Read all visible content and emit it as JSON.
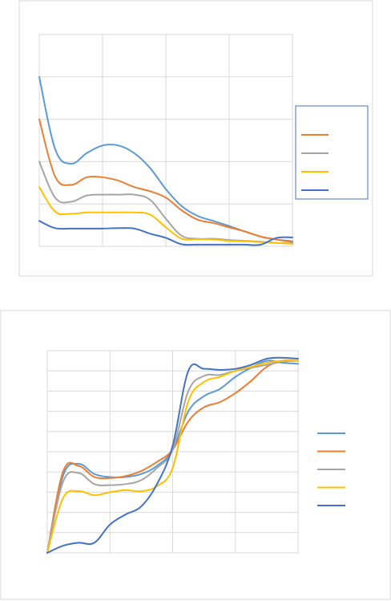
{
  "colors": {
    "blue": "#5b9bd5",
    "orange": "#ed7d31",
    "gray": "#a5a5a5",
    "yellow": "#ffc000",
    "darkblue": "#4472c4"
  },
  "chart_data": [
    {
      "type": "line",
      "title": "",
      "xlabel": "",
      "ylabel": "",
      "xlim": [
        0,
        4
      ],
      "ylim": [
        0,
        5
      ],
      "grid": true,
      "legend_position": "right",
      "series": [
        {
          "color": "#5b9bd5",
          "label": "",
          "x": [
            0,
            0.25,
            0.5,
            0.75,
            1.0,
            1.25,
            1.5,
            1.75,
            2.0,
            2.25,
            2.5,
            2.75,
            3.0,
            3.25,
            3.5,
            3.75,
            4.0
          ],
          "y": [
            4.0,
            2.3,
            1.95,
            2.2,
            2.38,
            2.38,
            2.2,
            1.85,
            1.35,
            0.95,
            0.72,
            0.6,
            0.48,
            0.35,
            0.23,
            0.16,
            0.12
          ]
        },
        {
          "color": "#ed7d31",
          "label": "",
          "x": [
            0,
            0.25,
            0.5,
            0.75,
            1.0,
            1.25,
            1.5,
            1.75,
            2.0,
            2.25,
            2.5,
            2.75,
            3.0,
            3.25,
            3.5,
            3.75,
            4.0
          ],
          "y": [
            3.0,
            1.65,
            1.45,
            1.63,
            1.63,
            1.55,
            1.4,
            1.3,
            1.15,
            0.85,
            0.63,
            0.55,
            0.45,
            0.35,
            0.23,
            0.16,
            0.1
          ]
        },
        {
          "color": "#a5a5a5",
          "label": "",
          "x": [
            0,
            0.25,
            0.5,
            0.75,
            1.0,
            1.25,
            1.5,
            1.75,
            2.0,
            2.25,
            2.5,
            2.75,
            3.0,
            3.25,
            3.5,
            3.75,
            4.0
          ],
          "y": [
            2.0,
            1.15,
            1.05,
            1.2,
            1.22,
            1.22,
            1.22,
            1.1,
            0.65,
            0.25,
            0.18,
            0.18,
            0.15,
            0.13,
            0.11,
            0.08,
            0.07
          ]
        },
        {
          "color": "#ffc000",
          "label": "",
          "x": [
            0,
            0.25,
            0.5,
            0.75,
            1.0,
            1.25,
            1.5,
            1.75,
            2.0,
            2.25,
            2.5,
            2.75,
            3.0,
            3.25,
            3.5,
            3.75,
            4.0
          ],
          "y": [
            1.4,
            0.82,
            0.77,
            0.8,
            0.8,
            0.8,
            0.8,
            0.75,
            0.45,
            0.18,
            0.17,
            0.16,
            0.13,
            0.12,
            0.1,
            0.08,
            0.06
          ]
        },
        {
          "color": "#4472c4",
          "label": "",
          "x": [
            0,
            0.25,
            0.5,
            0.75,
            1.0,
            1.25,
            1.5,
            1.75,
            2.0,
            2.25,
            2.5,
            2.75,
            3.0,
            3.25,
            3.5,
            3.75,
            4.0
          ],
          "y": [
            0.6,
            0.43,
            0.42,
            0.42,
            0.42,
            0.43,
            0.42,
            0.3,
            0.2,
            0.05,
            0.04,
            0.04,
            0.04,
            0.04,
            0.04,
            0.2,
            0.21
          ]
        }
      ]
    },
    {
      "type": "line",
      "title": "",
      "xlabel": "",
      "ylabel": "",
      "xlim": [
        0,
        4
      ],
      "ylim": [
        0,
        10
      ],
      "grid": true,
      "legend_position": "right",
      "series": [
        {
          "color": "#5b9bd5",
          "label": "",
          "x": [
            0,
            0.25,
            0.5,
            0.75,
            1.0,
            1.25,
            1.5,
            1.75,
            2.0,
            2.25,
            2.5,
            2.75,
            3.0,
            3.25,
            3.5,
            3.75,
            4.0
          ],
          "y": [
            0,
            3.8,
            4.4,
            3.9,
            3.75,
            3.75,
            3.9,
            4.3,
            5.1,
            7.0,
            7.75,
            8.1,
            8.7,
            9.15,
            9.5,
            9.4,
            9.35
          ]
        },
        {
          "color": "#ed7d31",
          "label": "",
          "x": [
            0,
            0.25,
            0.5,
            0.75,
            1.0,
            1.25,
            1.5,
            1.75,
            2.0,
            2.25,
            2.5,
            2.75,
            3.0,
            3.25,
            3.5,
            3.75,
            4.0
          ],
          "y": [
            0,
            4.0,
            4.3,
            3.75,
            3.7,
            3.8,
            4.05,
            4.5,
            5.1,
            6.5,
            7.2,
            7.45,
            7.9,
            8.5,
            9.2,
            9.5,
            9.5
          ]
        },
        {
          "color": "#a5a5a5",
          "label": "",
          "x": [
            0,
            0.25,
            0.5,
            0.75,
            1.0,
            1.25,
            1.5,
            1.75,
            2.0,
            2.25,
            2.5,
            2.75,
            3.0,
            3.25,
            3.5,
            3.75,
            4.0
          ],
          "y": [
            0,
            3.5,
            3.95,
            3.4,
            3.35,
            3.4,
            3.6,
            4.2,
            5.1,
            8.0,
            8.75,
            8.8,
            9.0,
            9.15,
            9.3,
            9.45,
            9.5
          ]
        },
        {
          "color": "#ffc000",
          "label": "",
          "x": [
            0,
            0.25,
            0.5,
            0.75,
            1.0,
            1.25,
            1.5,
            1.75,
            2.0,
            2.25,
            2.5,
            2.75,
            3.0,
            3.25,
            3.5,
            3.75,
            4.0
          ],
          "y": [
            0,
            2.7,
            3.05,
            2.85,
            3.0,
            3.1,
            3.05,
            3.3,
            4.2,
            7.5,
            8.45,
            8.7,
            9.0,
            9.2,
            9.4,
            9.5,
            9.5
          ]
        },
        {
          "color": "#4472c4",
          "label": "",
          "x": [
            0,
            0.25,
            0.5,
            0.75,
            1.0,
            1.25,
            1.5,
            1.75,
            2.0,
            2.25,
            2.5,
            2.75,
            3.0,
            3.25,
            3.5,
            3.75,
            4.0
          ],
          "y": [
            0,
            0.35,
            0.5,
            0.5,
            1.4,
            1.9,
            2.3,
            3.4,
            5.3,
            9.0,
            9.1,
            9.05,
            9.1,
            9.3,
            9.6,
            9.65,
            9.6
          ]
        }
      ]
    }
  ]
}
